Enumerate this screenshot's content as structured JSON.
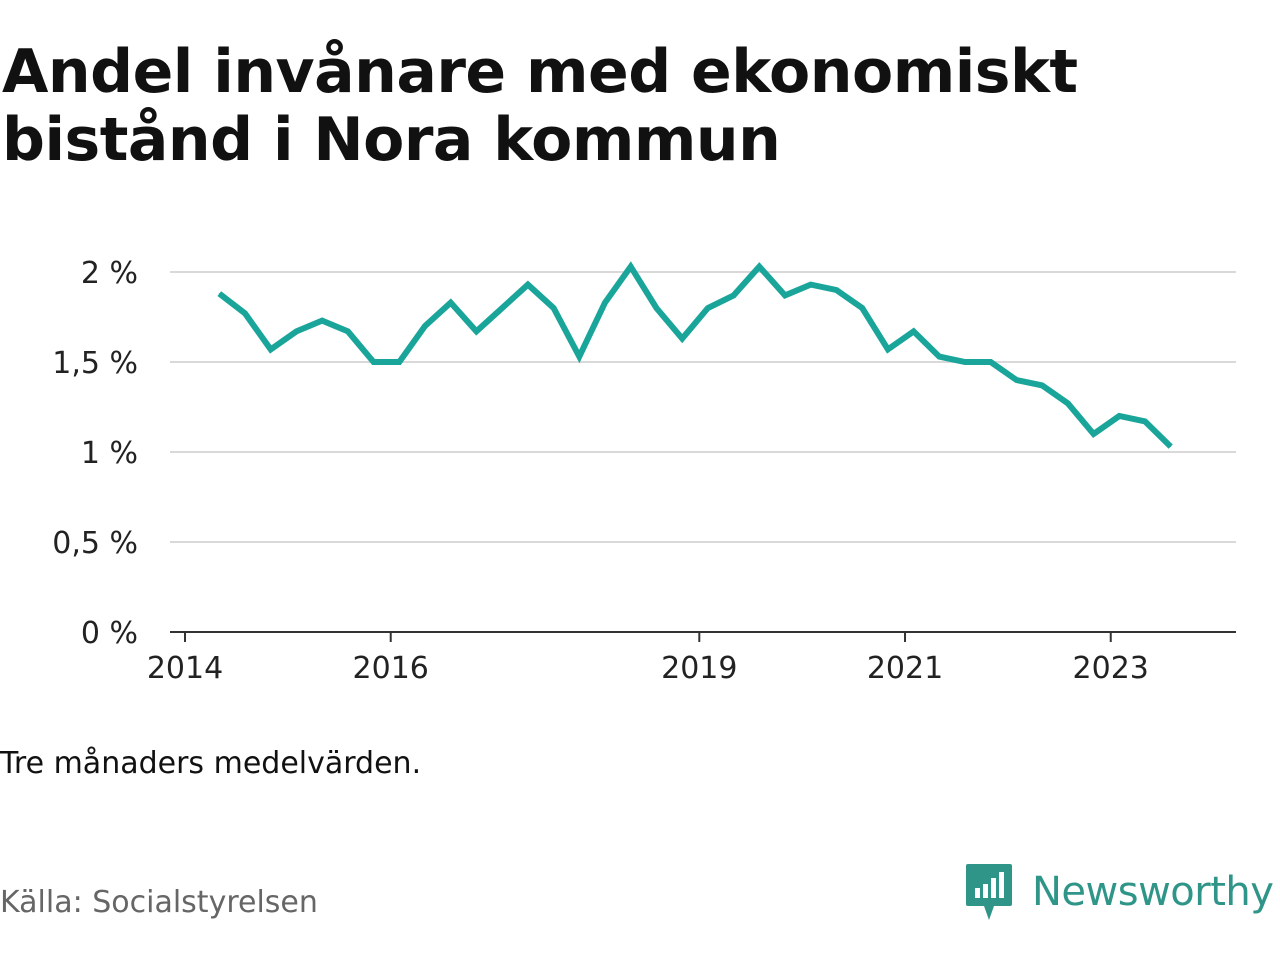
{
  "title": "Andel invånare med ekonomiskt bistånd i Nora kommun",
  "note": "Tre månaders medelvärden.",
  "source": "Källa: Socialstyrelsen",
  "brand": {
    "name": "Newsworthy",
    "icon": "newsworthy-logo-icon",
    "color": "#2f9588"
  },
  "colors": {
    "line": "#1aa59b",
    "grid": "#d9d9d9",
    "axis": "#333333"
  },
  "chart_data": {
    "type": "line",
    "title": "Andel invånare med ekonomiskt bistånd i Nora kommun",
    "xlabel": "",
    "ylabel": "",
    "ylim": [
      0,
      2
    ],
    "yticks": [
      0,
      0.5,
      1,
      1.5,
      2
    ],
    "ytick_labels": [
      "0 %",
      "0,5 %",
      "1 %",
      "1,5 %",
      "2 %"
    ],
    "xticks": [
      2014,
      2016,
      2019,
      2021,
      2023
    ],
    "xtick_labels": [
      "2014",
      "2016",
      "2019",
      "2021",
      "2023"
    ],
    "grid": true,
    "series": [
      {
        "name": "",
        "x": [
          "2014-05",
          "2014-08",
          "2014-11",
          "2015-02",
          "2015-05",
          "2015-08",
          "2015-11",
          "2016-02",
          "2016-05",
          "2016-08",
          "2016-11",
          "2017-02",
          "2017-05",
          "2017-08",
          "2017-11",
          "2018-02",
          "2018-05",
          "2018-08",
          "2018-11",
          "2019-02",
          "2019-05",
          "2019-08",
          "2019-11",
          "2020-02",
          "2020-05",
          "2020-08",
          "2020-11",
          "2021-02",
          "2021-05",
          "2021-08",
          "2021-11",
          "2022-02",
          "2022-05",
          "2022-08",
          "2022-11",
          "2023-02",
          "2023-05",
          "2023-08"
        ],
        "values": [
          1.88,
          1.77,
          1.57,
          1.67,
          1.73,
          1.67,
          1.5,
          1.5,
          1.7,
          1.83,
          1.67,
          1.8,
          1.93,
          1.8,
          1.53,
          1.83,
          2.03,
          1.8,
          1.63,
          1.8,
          1.87,
          2.03,
          1.87,
          1.93,
          1.9,
          1.8,
          1.57,
          1.67,
          1.53,
          1.5,
          1.5,
          1.4,
          1.37,
          1.27,
          1.1,
          1.2,
          1.17,
          1.03
        ]
      }
    ]
  }
}
